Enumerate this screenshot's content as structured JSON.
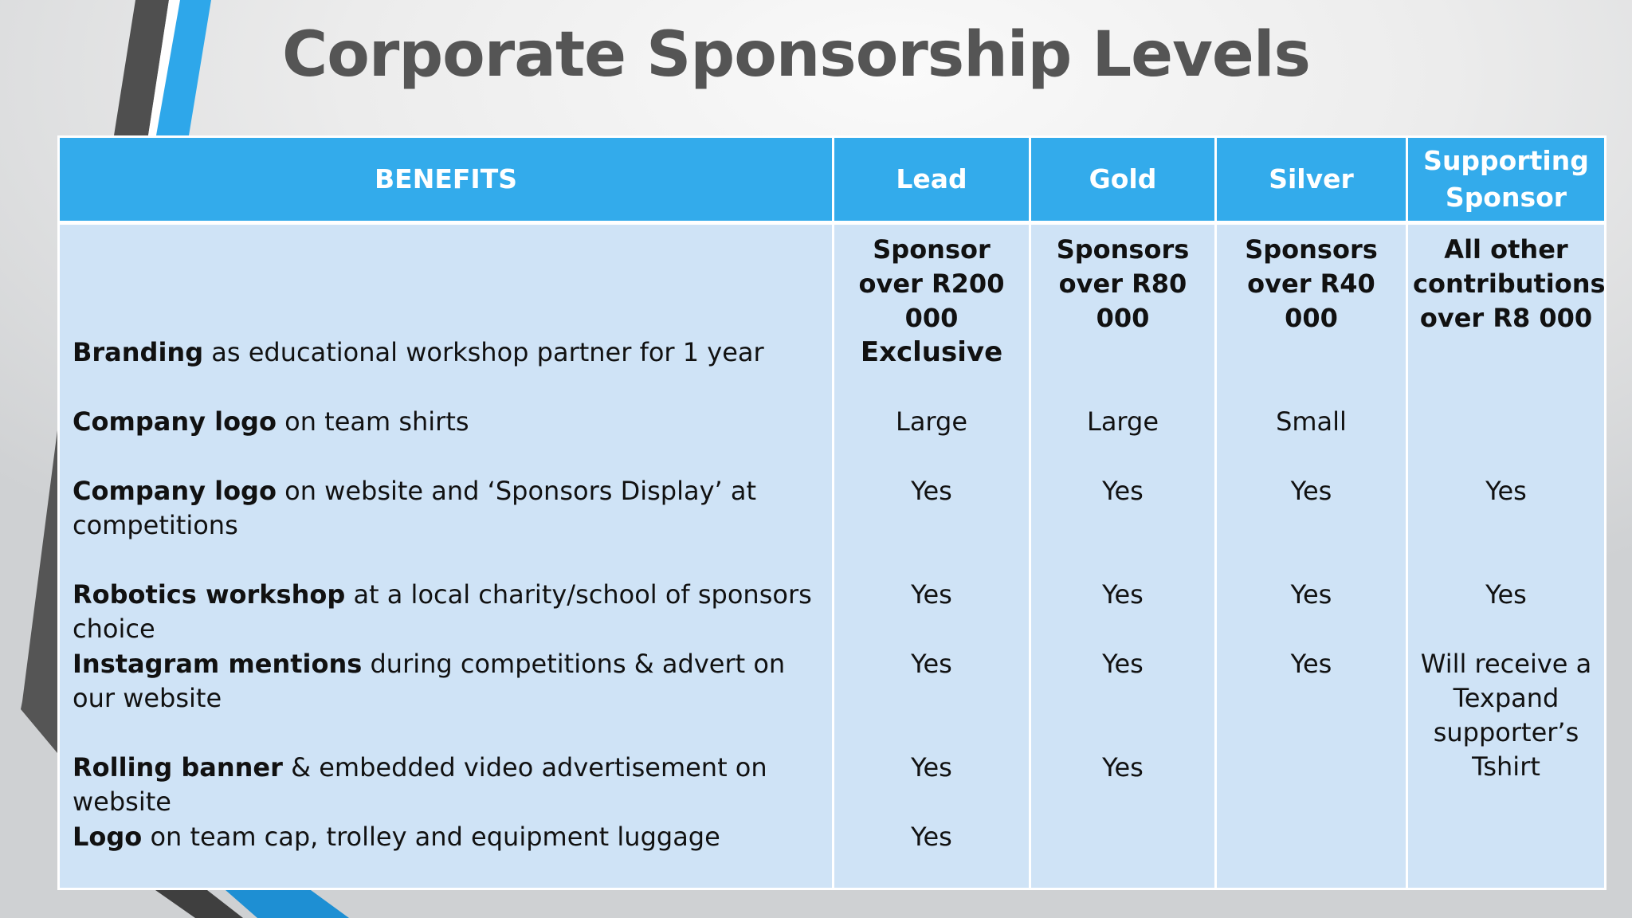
{
  "title": "Corporate Sponsorship Levels",
  "colors": {
    "header_bg": "#33abeb",
    "body_bg": "#cfe3f6",
    "title": "#555555",
    "accent_blue": "#2ea7ea",
    "accent_gray": "#555555"
  },
  "table": {
    "headers": [
      "BENEFITS",
      "Lead",
      "Gold",
      "Silver",
      "Supporting Sponsor"
    ],
    "thresholds": [
      "",
      "Sponsor over R200 000",
      "Sponsors over R80 000",
      "Sponsors over R40 000",
      "All other contributions over R8 000"
    ],
    "rows": [
      {
        "bold": "Branding",
        "rest": " as educational workshop partner for 1 year",
        "lead": "Exclusive",
        "gold": "",
        "silver": "",
        "supporting": ""
      },
      {
        "bold": "Company logo",
        "rest": " on team shirts",
        "lead": "Large",
        "gold": "Large",
        "silver": "Small",
        "supporting": ""
      },
      {
        "bold": "Company logo",
        "rest": " on website and ‘Sponsors Display’ at competitions",
        "lead": "Yes",
        "gold": "Yes",
        "silver": "Yes",
        "supporting": "Yes"
      },
      {
        "bold": "Robotics workshop",
        "rest": " at a local charity/school of sponsors choice",
        "lead": "Yes",
        "gold": "Yes",
        "silver": "Yes",
        "supporting": "Yes"
      },
      {
        "bold": "Instagram mentions",
        "rest": " during competitions & advert on our website",
        "lead": "Yes",
        "gold": "Yes",
        "silver": "Yes",
        "supporting": "Will receive a Texpand supporter’s Tshirt"
      },
      {
        "bold": "Rolling banner",
        "rest": " & embedded video advertisement on website",
        "lead": "Yes",
        "gold": "Yes",
        "silver": "",
        "supporting": ""
      },
      {
        "bold": "Logo",
        "rest": " on team cap, trolley and equipment luggage",
        "lead": "Yes",
        "gold": "",
        "silver": "",
        "supporting": ""
      }
    ]
  }
}
